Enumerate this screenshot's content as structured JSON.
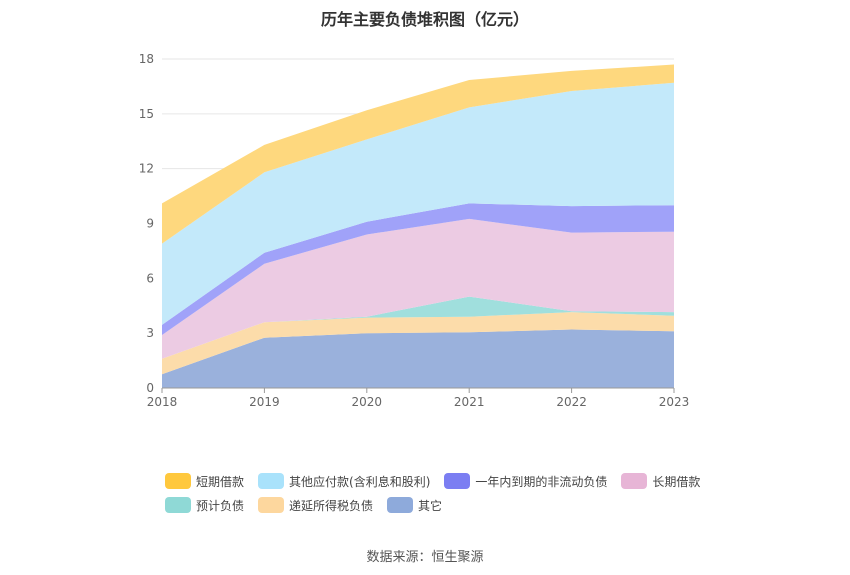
{
  "chart_data": {
    "type": "area",
    "stacked": true,
    "title": "历年主要负债堆积图（亿元）",
    "x": [
      "2018",
      "2019",
      "2020",
      "2021",
      "2022",
      "2023"
    ],
    "ylim": [
      0,
      18
    ],
    "yticks": [
      0,
      3,
      6,
      9,
      12,
      15,
      18
    ],
    "grid": true,
    "legend_position": "bottom",
    "series": [
      {
        "name": "其它",
        "color": "#9ab1dc",
        "values": [
          0.75,
          2.75,
          3.0,
          3.05,
          3.2,
          3.1
        ]
      },
      {
        "name": "递延所得税负债",
        "color": "#fcdcaa",
        "values": [
          0.85,
          0.85,
          0.85,
          0.85,
          0.95,
          0.85
        ]
      },
      {
        "name": "预计负债",
        "color": "#a0dfdd",
        "values": [
          0.0,
          0.0,
          0.05,
          1.1,
          0.05,
          0.2
        ]
      },
      {
        "name": "长期借款",
        "color": "#eccbe3",
        "values": [
          1.3,
          3.2,
          4.5,
          4.25,
          4.3,
          4.4
        ]
      },
      {
        "name": "一年内到期的非流动负债",
        "color": "#a0a2f9",
        "values": [
          0.55,
          0.6,
          0.7,
          0.85,
          1.45,
          1.45
        ]
      },
      {
        "name": "其他应付款(含利息和股利)",
        "color": "#c3e9fa",
        "values": [
          4.45,
          4.4,
          4.5,
          5.25,
          6.3,
          6.7
        ]
      },
      {
        "name": "短期借款",
        "color": "#fed87e",
        "values": [
          2.2,
          1.5,
          1.6,
          1.5,
          1.1,
          1.0
        ]
      }
    ],
    "legend_order": [
      "短期借款",
      "其他应付款(含利息和股利)",
      "一年内到期的非流动负债",
      "长期借款",
      "预计负债",
      "递延所得税负债",
      "其它"
    ],
    "legend_colors": {
      "短期借款": "#ffc83d",
      "其他应付款(含利息和股利)": "#a9e2fb",
      "一年内到期的非流动负债": "#7b7ef2",
      "长期借款": "#e7b5d6",
      "预计负债": "#8fd9d6",
      "递延所得税负债": "#fdd79e",
      "其它": "#8eaadb"
    }
  },
  "source": "数据来源：恒生聚源"
}
